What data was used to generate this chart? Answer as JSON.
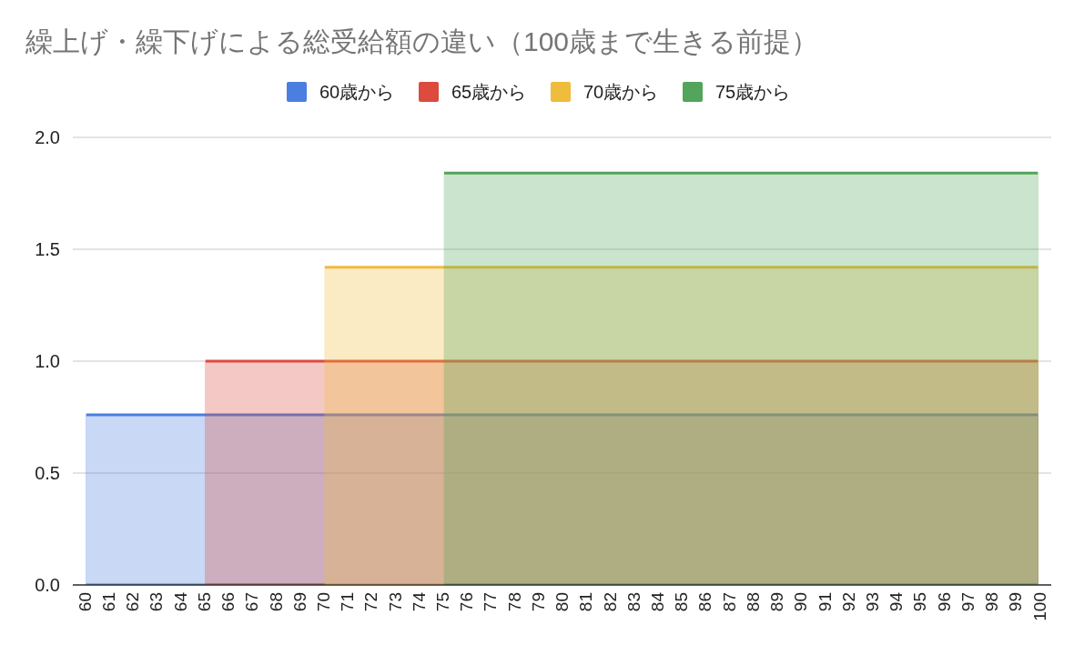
{
  "chart_data": {
    "type": "area",
    "title": "繰上げ・繰下げによる総受給額の違い（100歳まで生きる前提）",
    "categories": [
      "60",
      "61",
      "62",
      "63",
      "64",
      "65",
      "66",
      "67",
      "68",
      "69",
      "70",
      "71",
      "72",
      "73",
      "74",
      "75",
      "76",
      "77",
      "78",
      "79",
      "80",
      "81",
      "82",
      "83",
      "84",
      "85",
      "86",
      "87",
      "88",
      "89",
      "90",
      "91",
      "92",
      "93",
      "94",
      "95",
      "96",
      "97",
      "98",
      "99",
      "100"
    ],
    "series": [
      {
        "name": "60歳から",
        "color": "#4a7fdf",
        "values": [
          0.76,
          0.76,
          0.76,
          0.76,
          0.76,
          0.76,
          0.76,
          0.76,
          0.76,
          0.76,
          0.76,
          0.76,
          0.76,
          0.76,
          0.76,
          0.76,
          0.76,
          0.76,
          0.76,
          0.76,
          0.76,
          0.76,
          0.76,
          0.76,
          0.76,
          0.76,
          0.76,
          0.76,
          0.76,
          0.76,
          0.76,
          0.76,
          0.76,
          0.76,
          0.76,
          0.76,
          0.76,
          0.76,
          0.76,
          0.76,
          0.76
        ]
      },
      {
        "name": "65歳から",
        "color": "#dc4b3e",
        "values": [
          null,
          null,
          null,
          null,
          null,
          1.0,
          1.0,
          1.0,
          1.0,
          1.0,
          1.0,
          1.0,
          1.0,
          1.0,
          1.0,
          1.0,
          1.0,
          1.0,
          1.0,
          1.0,
          1.0,
          1.0,
          1.0,
          1.0,
          1.0,
          1.0,
          1.0,
          1.0,
          1.0,
          1.0,
          1.0,
          1.0,
          1.0,
          1.0,
          1.0,
          1.0,
          1.0,
          1.0,
          1.0,
          1.0,
          1.0
        ]
      },
      {
        "name": "70歳から",
        "color": "#f0bc3c",
        "values": [
          null,
          null,
          null,
          null,
          null,
          null,
          null,
          null,
          null,
          null,
          1.42,
          1.42,
          1.42,
          1.42,
          1.42,
          1.42,
          1.42,
          1.42,
          1.42,
          1.42,
          1.42,
          1.42,
          1.42,
          1.42,
          1.42,
          1.42,
          1.42,
          1.42,
          1.42,
          1.42,
          1.42,
          1.42,
          1.42,
          1.42,
          1.42,
          1.42,
          1.42,
          1.42,
          1.42,
          1.42,
          1.42
        ]
      },
      {
        "name": "75歳から",
        "color": "#52a55a",
        "values": [
          null,
          null,
          null,
          null,
          null,
          null,
          null,
          null,
          null,
          null,
          null,
          null,
          null,
          null,
          null,
          1.84,
          1.84,
          1.84,
          1.84,
          1.84,
          1.84,
          1.84,
          1.84,
          1.84,
          1.84,
          1.84,
          1.84,
          1.84,
          1.84,
          1.84,
          1.84,
          1.84,
          1.84,
          1.84,
          1.84,
          1.84,
          1.84,
          1.84,
          1.84,
          1.84,
          1.84
        ]
      }
    ],
    "ylim": [
      0,
      2
    ],
    "yticks": [
      {
        "value": 0,
        "label": "0.0"
      },
      {
        "value": 0.5,
        "label": "0.5"
      },
      {
        "value": 1,
        "label": "1.0"
      },
      {
        "value": 1.5,
        "label": "1.5"
      },
      {
        "value": 2,
        "label": "2.0"
      }
    ],
    "grid": "y",
    "legend": "top"
  }
}
